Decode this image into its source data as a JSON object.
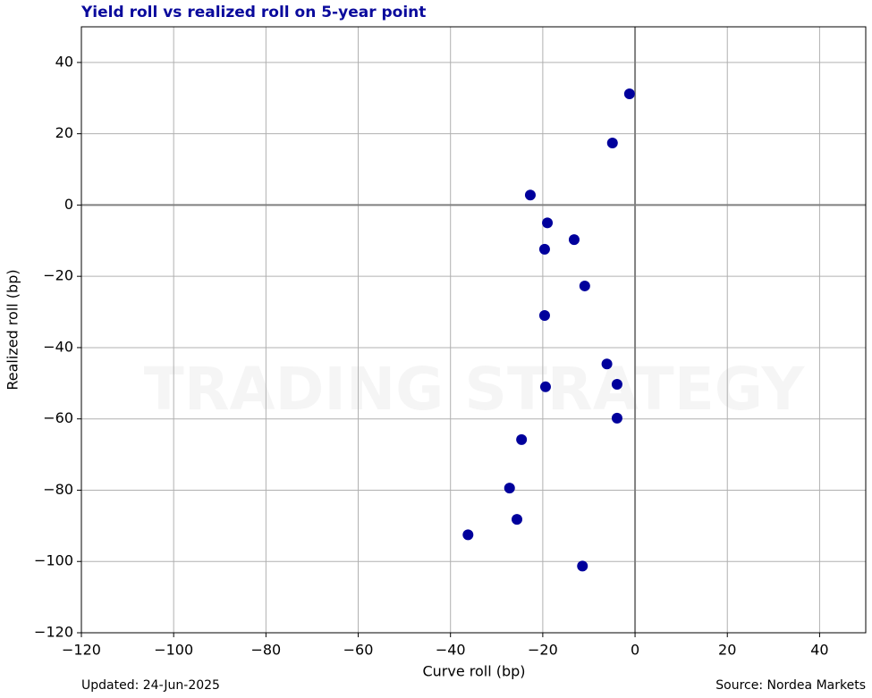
{
  "chart_data": {
    "type": "scatter",
    "title": "Yield roll vs realized roll on 5-year point",
    "xlabel": "Curve roll (bp)",
    "ylabel": "Realized roll (bp)",
    "footer_left": "Updated: 24-Jun-2025",
    "footer_right": "Source: Nordea Markets",
    "watermark": "TRADING STRATEGY",
    "series": [
      {
        "color": "#00009c",
        "x": [
          -1.2,
          -4.9,
          -22.7,
          -19.0,
          -13.2,
          -19.6,
          -10.9,
          -19.6,
          -6.1,
          -3.9,
          -19.4,
          -3.9,
          -24.6,
          -27.2,
          -25.6,
          -36.2,
          -11.4
        ],
        "values": [
          31.2,
          17.4,
          2.8,
          -5.0,
          -9.7,
          -12.4,
          -22.7,
          -31.0,
          -44.6,
          -50.3,
          -51.0,
          -59.8,
          -65.8,
          -79.4,
          -88.2,
          -92.5,
          -101.3
        ]
      }
    ],
    "xlim": [
      -120,
      50
    ],
    "ylim": [
      -120,
      50
    ],
    "xticks": [
      {
        "value": -120,
        "label": "−120"
      },
      {
        "value": -100,
        "label": "−100"
      },
      {
        "value": -80,
        "label": "−80"
      },
      {
        "value": -60,
        "label": "−60"
      },
      {
        "value": -40,
        "label": "−40"
      },
      {
        "value": -20,
        "label": "−20"
      },
      0,
      20,
      40
    ],
    "yticks": [
      {
        "value": -120,
        "label": "−120"
      },
      {
        "value": -100,
        "label": "−100"
      },
      {
        "value": -80,
        "label": "−80"
      },
      {
        "value": -60,
        "label": "−60"
      },
      {
        "value": -40,
        "label": "−40"
      },
      {
        "value": -20,
        "label": "−20"
      },
      0,
      20,
      40
    ],
    "grid": true,
    "zero_lines": true
  }
}
